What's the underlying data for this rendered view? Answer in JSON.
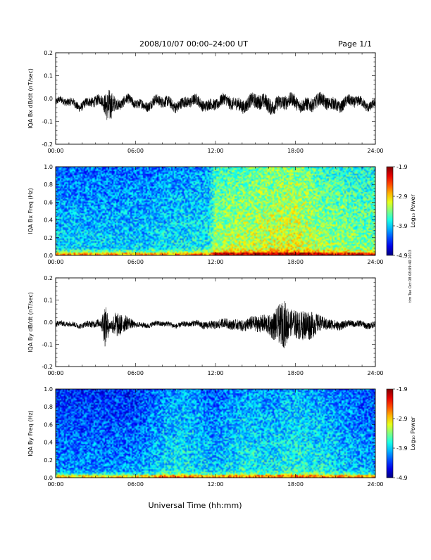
{
  "header": {
    "title": "2008/10/07  00:00–24:00 UT",
    "page_label": "Page 1/1"
  },
  "footer": {
    "xlabel": "Universal Time (hh:mm)",
    "side_stamp": "tim Tue Oct 08 08:09:40 2013"
  },
  "chart_data": [
    {
      "type": "line",
      "ylabel": "IQA Bx dB/dt (nT/sec)",
      "x_ticks": [
        "00:00",
        "06:00",
        "12:00",
        "18:00",
        "24:00"
      ],
      "xlim": [
        0,
        24
      ],
      "ylim": [
        -0.2,
        0.2
      ],
      "y_ticks": [
        -0.2,
        -0.1,
        0.0,
        0.1,
        0.2
      ],
      "y_tick_labels": [
        "-0.2",
        "-0.1",
        "0.0",
        "0.1",
        "0.2"
      ],
      "baseline": -0.02,
      "envelope_hours": [
        0,
        2,
        3.5,
        4,
        4.5,
        6,
        8,
        10,
        12,
        14,
        16,
        18,
        20,
        22,
        24
      ],
      "envelope_amplitude": [
        0.015,
        0.02,
        0.025,
        0.08,
        0.025,
        0.02,
        0.025,
        0.025,
        0.025,
        0.03,
        0.035,
        0.03,
        0.03,
        0.025,
        0.02
      ]
    },
    {
      "type": "heatmap",
      "ylabel": "IQA Bx Freq (Hz)",
      "x_ticks": [
        "00:00",
        "06:00",
        "12:00",
        "18:00",
        "24:00"
      ],
      "xlim": [
        0,
        24
      ],
      "ylim": [
        0.0,
        1.0
      ],
      "y_ticks": [
        0.0,
        0.2,
        0.4,
        0.6,
        0.8,
        1.0
      ],
      "y_tick_labels": [
        "0.0",
        "0.2",
        "0.4",
        "0.6",
        "0.8",
        "1.0"
      ],
      "colorbar": {
        "label": "Log₁₀ Power",
        "range": [
          -4.9,
          -1.9
        ],
        "tick_labels": [
          "-1.9",
          "-2.9",
          "-3.9",
          "-4.9"
        ]
      },
      "intensity_hours": [
        0,
        6,
        11.5,
        12,
        16,
        18,
        20,
        24
      ],
      "intensity_level": [
        0.35,
        0.35,
        0.4,
        0.55,
        0.6,
        0.62,
        0.55,
        0.5
      ]
    },
    {
      "type": "line",
      "ylabel": "IQA By dB/dt (nT/sec)",
      "x_ticks": [
        "00:00",
        "06:00",
        "12:00",
        "18:00",
        "24:00"
      ],
      "xlim": [
        0,
        24
      ],
      "ylim": [
        -0.2,
        0.2
      ],
      "y_ticks": [
        -0.2,
        -0.1,
        0.0,
        0.1,
        0.2
      ],
      "y_tick_labels": [
        "-0.2",
        "-0.1",
        "0.0",
        "0.1",
        "0.2"
      ],
      "baseline": -0.01,
      "envelope_hours": [
        0,
        2,
        3.4,
        3.7,
        4.1,
        4.5,
        6,
        8,
        10,
        12,
        14,
        16,
        17.2,
        17.6,
        19,
        20,
        22,
        24
      ],
      "envelope_amplitude": [
        0.012,
        0.012,
        0.02,
        0.1,
        0.02,
        0.06,
        0.012,
        0.012,
        0.012,
        0.02,
        0.025,
        0.045,
        0.11,
        0.06,
        0.07,
        0.03,
        0.015,
        0.015
      ]
    },
    {
      "type": "heatmap",
      "ylabel": "IQA By Freq (Hz)",
      "x_ticks": [
        "00:00",
        "06:00",
        "12:00",
        "18:00",
        "24:00"
      ],
      "xlim": [
        0,
        24
      ],
      "ylim": [
        0.0,
        1.0
      ],
      "y_ticks": [
        0.0,
        0.2,
        0.4,
        0.6,
        0.8,
        1.0
      ],
      "y_tick_labels": [
        "0.0",
        "0.2",
        "0.4",
        "0.6",
        "0.8",
        "1.0"
      ],
      "colorbar": {
        "label": "Log₁₀ Power",
        "range": [
          -4.9,
          -1.9
        ],
        "tick_labels": [
          "-1.9",
          "-2.9",
          "-3.9",
          "-4.9"
        ]
      },
      "intensity_hours": [
        0,
        6,
        8.5,
        9.5,
        12,
        14,
        16,
        18,
        19.5,
        24
      ],
      "intensity_level": [
        0.28,
        0.28,
        0.38,
        0.4,
        0.33,
        0.4,
        0.38,
        0.42,
        0.4,
        0.3
      ]
    }
  ]
}
